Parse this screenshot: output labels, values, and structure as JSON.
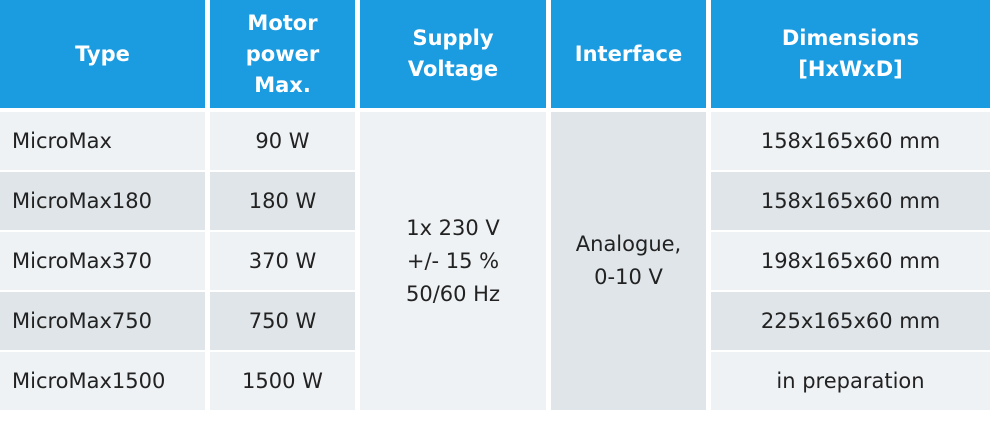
{
  "header": {
    "columns": [
      [
        "Type"
      ],
      [
        "Motor",
        "power",
        "Max."
      ],
      [
        "Supply",
        "Voltage"
      ],
      [
        "Interface"
      ],
      [
        "Dimensions",
        "[HxWxD]"
      ]
    ]
  },
  "rows": [
    [
      "MicroMax",
      "90 W",
      "158x165x60 mm"
    ],
    [
      "MicroMax180",
      "180 W",
      "158x165x60 mm"
    ],
    [
      "MicroMax370",
      "370 W",
      "198x165x60 mm"
    ],
    [
      "MicroMax750",
      "750 W",
      "225x165x60 mm"
    ],
    [
      "MicroMax1500",
      "1500 W",
      "in preparation"
    ]
  ],
  "supply_voltage": [
    "1x 230 V",
    "+/- 15 %",
    "50/60 Hz"
  ],
  "interface": [
    "Analogue,",
    "0-10 V"
  ]
}
